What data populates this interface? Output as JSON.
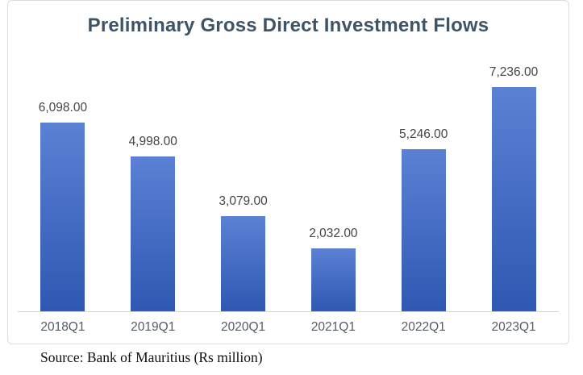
{
  "source_note": "Source: Bank of Mauritius (Rs million)",
  "chart_data": {
    "type": "bar",
    "title": "Preliminary Gross Direct Investment Flows",
    "categories": [
      "2018Q1",
      "2019Q1",
      "2020Q1",
      "2021Q1",
      "2022Q1",
      "2023Q1"
    ],
    "values": [
      6098,
      4998,
      3079,
      2032,
      5246,
      7236
    ],
    "labels": [
      "6,098.00",
      "4,998.00",
      "3,079.00",
      "2,032.00",
      "5,246.00",
      "7,236.00"
    ],
    "xlabel": "",
    "ylabel": "",
    "ylim": [
      0,
      8000
    ],
    "grid": false,
    "legend": "none",
    "colors": {
      "bar_top": "#5B81D4",
      "bar_bottom": "#2E58B2",
      "title": "#3E5366",
      "data_label": "#444444",
      "axis_label": "#545C66",
      "axis_line": "#D4D4D4",
      "border": "#DCDCDC"
    }
  }
}
